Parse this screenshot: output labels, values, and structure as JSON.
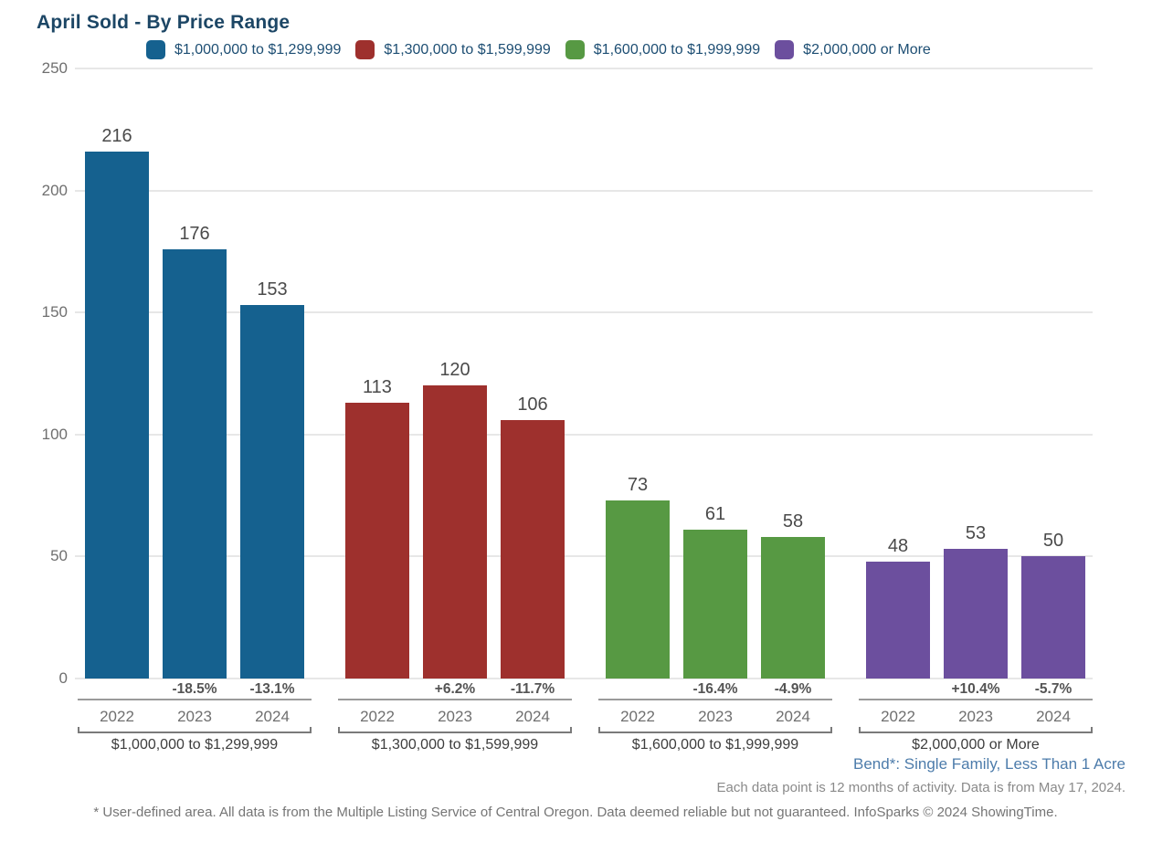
{
  "title": "April Sold - By Price Range",
  "chart_data": {
    "type": "bar",
    "title": "April Sold - By Price Range",
    "ylabel": "",
    "xlabel": "",
    "ylim": [
      0,
      250
    ],
    "yticks": [
      0,
      50,
      100,
      150,
      200,
      250
    ],
    "grid": true,
    "legend_position": "top",
    "categories": [
      "2022",
      "2023",
      "2024"
    ],
    "groups": [
      {
        "label": "$1,000,000 to $1,299,999",
        "color": "#15618F",
        "values": [
          216,
          176,
          153
        ],
        "pct_change": [
          null,
          "-18.5%",
          "-13.1%"
        ]
      },
      {
        "label": "$1,300,000 to $1,599,999",
        "color": "#9E302D",
        "values": [
          113,
          120,
          106
        ],
        "pct_change": [
          null,
          "+6.2%",
          "-11.7%"
        ]
      },
      {
        "label": "$1,600,000 to $1,999,999",
        "color": "#579943",
        "values": [
          73,
          61,
          58
        ],
        "pct_change": [
          null,
          "-16.4%",
          "-4.9%"
        ]
      },
      {
        "label": "$2,000,000 or More",
        "color": "#6C4F9E",
        "values": [
          48,
          53,
          50
        ],
        "pct_change": [
          null,
          "+10.4%",
          "-5.7%"
        ]
      }
    ]
  },
  "footer": {
    "area_note": "Bend*: Single Family, Less Than 1 Acre",
    "data_note": "Each data point is 12 months of activity. Data is from May 17, 2024.",
    "disclaimer": "* User-defined area. All data is from the Multiple Listing Service of Central Oregon. Data deemed reliable but not guaranteed. InfoSparks © 2024 ShowingTime."
  }
}
